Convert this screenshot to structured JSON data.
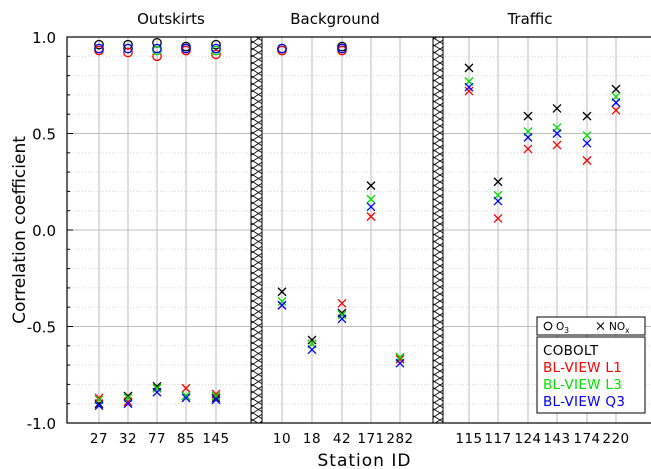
{
  "chart_data": {
    "type": "scatter",
    "ylabel": "Correlation coefficient",
    "xlabel": "Station ID",
    "ylim": [
      -1.0,
      1.0
    ],
    "yticks": [
      "1.0",
      "0.5",
      "0.0",
      "-0.5",
      "-1.0"
    ],
    "ytick_values": [
      1.0,
      0.5,
      0.0,
      -0.5,
      -1.0
    ],
    "grid": true,
    "groups": [
      {
        "title": "Outskirts",
        "stations": [
          "27",
          "32",
          "77",
          "85",
          "145"
        ]
      },
      {
        "title": "Background",
        "stations": [
          "10",
          "18",
          "42",
          "171",
          "282"
        ]
      },
      {
        "title": "Traffic",
        "stations": [
          "115",
          "117",
          "124",
          "143",
          "174",
          "220"
        ]
      }
    ],
    "marker_legend": {
      "o3_label": "O",
      "o3_sub": "3",
      "nox_label": "NO",
      "nox_sub": "x"
    },
    "series": [
      {
        "name": "COBOLT",
        "color": "#000000",
        "o3": {
          "27": 0.96,
          "32": 0.96,
          "77": 0.97,
          "85": 0.95,
          "145": 0.96,
          "10": 0.94,
          "42": 0.95
        },
        "nox": {
          "27": -0.9,
          "32": -0.86,
          "77": -0.81,
          "85": -0.86,
          "145": -0.87,
          "10": -0.32,
          "18": -0.57,
          "42": -0.43,
          "171": 0.23,
          "282": -0.66,
          "115": 0.84,
          "117": 0.25,
          "124": 0.59,
          "143": 0.63,
          "174": 0.59,
          "220": 0.73
        }
      },
      {
        "name": "BL-VIEW L1",
        "color": "#ff0000",
        "o3": {
          "27": 0.93,
          "32": 0.92,
          "77": 0.9,
          "85": 0.93,
          "145": 0.91,
          "10": 0.93,
          "42": 0.93
        },
        "nox": {
          "27": -0.87,
          "32": -0.89,
          "77": -0.82,
          "85": -0.82,
          "145": -0.85,
          "10": -0.39,
          "18": -0.59,
          "42": -0.38,
          "171": 0.07,
          "282": -0.67,
          "115": 0.72,
          "117": 0.06,
          "124": 0.42,
          "143": 0.44,
          "174": 0.36,
          "220": 0.62
        }
      },
      {
        "name": "BL-VIEW L3",
        "color": "#00e000",
        "o3": {
          "27": 0.94,
          "32": 0.94,
          "77": 0.93,
          "85": 0.94,
          "145": 0.93,
          "10": 0.94,
          "42": 0.94
        },
        "nox": {
          "27": -0.88,
          "32": -0.87,
          "77": -0.82,
          "85": -0.86,
          "145": -0.86,
          "10": -0.37,
          "18": -0.59,
          "42": -0.44,
          "171": 0.16,
          "282": -0.66,
          "115": 0.77,
          "117": 0.18,
          "124": 0.51,
          "143": 0.53,
          "174": 0.49,
          "220": 0.69
        }
      },
      {
        "name": "BL-VIEW Q3",
        "color": "#0000ff",
        "o3": {
          "27": 0.94,
          "32": 0.94,
          "77": 0.94,
          "85": 0.94,
          "145": 0.94,
          "10": 0.94,
          "42": 0.94
        },
        "nox": {
          "27": -0.91,
          "32": -0.9,
          "77": -0.84,
          "85": -0.87,
          "145": -0.88,
          "10": -0.39,
          "18": -0.62,
          "42": -0.46,
          "171": 0.12,
          "282": -0.69,
          "115": 0.74,
          "117": 0.15,
          "124": 0.48,
          "143": 0.5,
          "174": 0.45,
          "220": 0.66
        }
      }
    ]
  }
}
